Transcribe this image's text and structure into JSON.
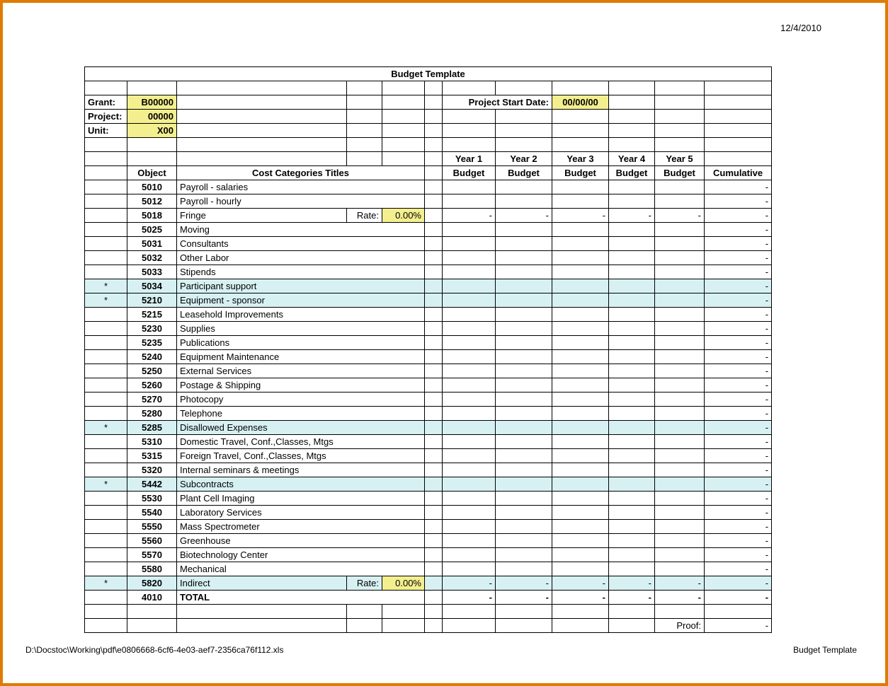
{
  "page": {
    "date": "12/4/2010",
    "footer_left_path": "D:\\Docstoc\\Working\\pdf\\e0806668-6cf6-4e03-aef7-2356ca76f112.xls",
    "footer_right_label": "Budget Template"
  },
  "colors": {
    "frame_border": "#e07b00",
    "cell_border": "#000000",
    "highlight_yellow": "#f3ef8f",
    "highlight_cyan": "#d7f1f3",
    "text": "#000000",
    "background": "#ffffff"
  },
  "sheet": {
    "title": "Budget Template",
    "meta": {
      "grant_label": "Grant:",
      "grant_value": "B00000",
      "project_label": "Project:",
      "project_value": "00000",
      "unit_label": "Unit:",
      "unit_value": "X00",
      "project_start_date_label": "Project Start Date:",
      "project_start_date_value": "00/00/00"
    },
    "headers": {
      "object": "Object",
      "cost_categories": "Cost Categories Titles",
      "years": [
        "Year 1",
        "Year 2",
        "Year 3",
        "Year 4",
        "Year 5"
      ],
      "budget": "Budget",
      "cumulative": "Cumulative"
    },
    "rate_label": "Rate:",
    "rows": [
      {
        "object": "5010",
        "title": "Payroll - salaries",
        "highlight": false,
        "rate": null,
        "dashes": false
      },
      {
        "object": "5012",
        "title": "Payroll - hourly",
        "highlight": false,
        "rate": null,
        "dashes": false
      },
      {
        "object": "5018",
        "title": "Fringe",
        "highlight": false,
        "rate": "0.00%",
        "dashes": true
      },
      {
        "object": "5025",
        "title": "Moving",
        "highlight": false,
        "rate": null,
        "dashes": false
      },
      {
        "object": "5031",
        "title": "Consultants",
        "highlight": false,
        "rate": null,
        "dashes": false
      },
      {
        "object": "5032",
        "title": "Other Labor",
        "highlight": false,
        "rate": null,
        "dashes": false
      },
      {
        "object": "5033",
        "title": "Stipends",
        "highlight": false,
        "rate": null,
        "dashes": false
      },
      {
        "object": "5034",
        "title": "Participant support",
        "highlight": true,
        "rate": null,
        "dashes": false
      },
      {
        "object": "5210",
        "title": "Equipment - sponsor",
        "highlight": true,
        "rate": null,
        "dashes": false
      },
      {
        "object": "5215",
        "title": "Leasehold Improvements",
        "highlight": false,
        "rate": null,
        "dashes": false
      },
      {
        "object": "5230",
        "title": "Supplies",
        "highlight": false,
        "rate": null,
        "dashes": false
      },
      {
        "object": "5235",
        "title": "Publications",
        "highlight": false,
        "rate": null,
        "dashes": false
      },
      {
        "object": "5240",
        "title": "Equipment Maintenance",
        "highlight": false,
        "rate": null,
        "dashes": false
      },
      {
        "object": "5250",
        "title": "External Services",
        "highlight": false,
        "rate": null,
        "dashes": false
      },
      {
        "object": "5260",
        "title": "Postage & Shipping",
        "highlight": false,
        "rate": null,
        "dashes": false
      },
      {
        "object": "5270",
        "title": "Photocopy",
        "highlight": false,
        "rate": null,
        "dashes": false
      },
      {
        "object": "5280",
        "title": "Telephone",
        "highlight": false,
        "rate": null,
        "dashes": false
      },
      {
        "object": "5285",
        "title": "Disallowed Expenses",
        "highlight": true,
        "rate": null,
        "dashes": false
      },
      {
        "object": "5310",
        "title": "Domestic Travel, Conf.,Classes, Mtgs",
        "highlight": false,
        "rate": null,
        "dashes": false
      },
      {
        "object": "5315",
        "title": "Foreign Travel, Conf.,Classes, Mtgs",
        "highlight": false,
        "rate": null,
        "dashes": false
      },
      {
        "object": "5320",
        "title": "Internal seminars & meetings",
        "highlight": false,
        "rate": null,
        "dashes": false
      },
      {
        "object": "5442",
        "title": "Subcontracts",
        "highlight": true,
        "rate": null,
        "dashes": false
      },
      {
        "object": "5530",
        "title": "Plant Cell Imaging",
        "highlight": false,
        "rate": null,
        "dashes": false
      },
      {
        "object": "5540",
        "title": "Laboratory Services",
        "highlight": false,
        "rate": null,
        "dashes": false
      },
      {
        "object": "5550",
        "title": "Mass Spectrometer",
        "highlight": false,
        "rate": null,
        "dashes": false
      },
      {
        "object": "5560",
        "title": "Greenhouse",
        "highlight": false,
        "rate": null,
        "dashes": false
      },
      {
        "object": "5570",
        "title": "Biotechnology Center",
        "highlight": false,
        "rate": null,
        "dashes": false
      },
      {
        "object": "5580",
        "title": "Mechanical",
        "highlight": false,
        "rate": null,
        "dashes": false
      },
      {
        "object": "5820",
        "title": "Indirect",
        "highlight": true,
        "rate": "0.00%",
        "dashes": true
      },
      {
        "object": "4010",
        "title": "TOTAL",
        "bold": true,
        "highlight": false,
        "rate": null,
        "dashes": true
      }
    ],
    "proof_label": "Proof:",
    "star": "*",
    "dash": "-"
  }
}
